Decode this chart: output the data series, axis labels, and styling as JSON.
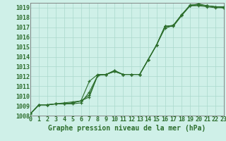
{
  "title": "Graphe pression niveau de la mer (hPa)",
  "background_color": "#cff0e8",
  "grid_color": "#aad8cc",
  "line_color": "#2d6e2d",
  "marker_color": "#2d6e2d",
  "xlim": [
    0,
    23
  ],
  "ylim": [
    1008,
    1019.5
  ],
  "yticks": [
    1008,
    1009,
    1010,
    1011,
    1012,
    1013,
    1014,
    1015,
    1016,
    1017,
    1018,
    1019
  ],
  "xticks": [
    0,
    1,
    2,
    3,
    4,
    5,
    6,
    7,
    8,
    9,
    10,
    11,
    12,
    13,
    14,
    15,
    16,
    17,
    18,
    19,
    20,
    21,
    22,
    23
  ],
  "series": [
    [
      1008.2,
      1009.1,
      1009.1,
      1009.2,
      1009.2,
      1009.2,
      1009.3,
      1010.4,
      1012.1,
      1012.2,
      1012.6,
      1012.2,
      1012.2,
      1012.2,
      1013.7,
      1015.2,
      1017.1,
      1017.1,
      1018.2,
      1019.2,
      1019.2,
      1019.1,
      1019.0,
      1019.0
    ],
    [
      1008.2,
      1009.1,
      1009.1,
      1009.2,
      1009.2,
      1009.3,
      1009.5,
      1010.1,
      1012.1,
      1012.2,
      1012.5,
      1012.2,
      1012.2,
      1012.2,
      1013.7,
      1015.2,
      1016.9,
      1017.2,
      1018.3,
      1019.3,
      1019.3,
      1019.2,
      1019.1,
      1019.1
    ],
    [
      1008.2,
      1009.1,
      1009.1,
      1009.2,
      1009.2,
      1009.3,
      1009.5,
      1011.5,
      1012.2,
      1012.2,
      1012.6,
      1012.2,
      1012.2,
      1012.2,
      1013.7,
      1015.2,
      1017.1,
      1017.2,
      1018.3,
      1019.2,
      1019.3,
      1019.2,
      1019.1,
      1019.0
    ],
    [
      1008.2,
      1009.1,
      1009.1,
      1009.2,
      1009.3,
      1009.4,
      1009.5,
      1009.9,
      1012.1,
      1012.2,
      1012.5,
      1012.2,
      1012.2,
      1012.2,
      1013.7,
      1015.2,
      1017.1,
      1017.2,
      1018.3,
      1019.2,
      1019.4,
      1019.2,
      1019.1,
      1019.0
    ]
  ],
  "xlabel_fontsize": 7,
  "tick_fontsize": 6,
  "tick_color": "#2d6e2d"
}
